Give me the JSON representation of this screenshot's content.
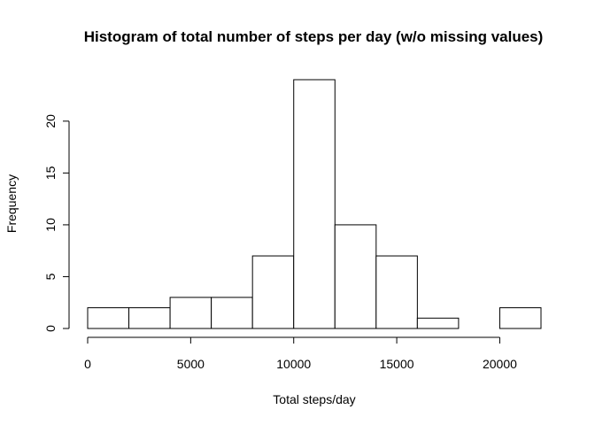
{
  "chart_data": {
    "type": "bar",
    "title": "Histogram of total number of steps per day (w/o missing values)",
    "xlabel": "Total steps/day",
    "ylabel": "Frequency",
    "bins": [
      {
        "start": 0,
        "end": 2000,
        "count": 2
      },
      {
        "start": 2000,
        "end": 4000,
        "count": 2
      },
      {
        "start": 4000,
        "end": 6000,
        "count": 3
      },
      {
        "start": 6000,
        "end": 8000,
        "count": 3
      },
      {
        "start": 8000,
        "end": 10000,
        "count": 7
      },
      {
        "start": 10000,
        "end": 12000,
        "count": 24
      },
      {
        "start": 12000,
        "end": 14000,
        "count": 10
      },
      {
        "start": 14000,
        "end": 16000,
        "count": 7
      },
      {
        "start": 16000,
        "end": 18000,
        "count": 1
      },
      {
        "start": 18000,
        "end": 20000,
        "count": 0
      },
      {
        "start": 20000,
        "end": 22000,
        "count": 2
      }
    ],
    "xlim": [
      0,
      22000
    ],
    "ylim": [
      0,
      24
    ],
    "xticks": [
      0,
      5000,
      10000,
      15000,
      20000
    ],
    "xtick_labels": [
      "0",
      "5000",
      "10000",
      "15000",
      "20000"
    ],
    "yticks": [
      0,
      5,
      10,
      15,
      20
    ],
    "ytick_labels": [
      "0",
      "5",
      "10",
      "15",
      "20"
    ],
    "grid": false
  }
}
